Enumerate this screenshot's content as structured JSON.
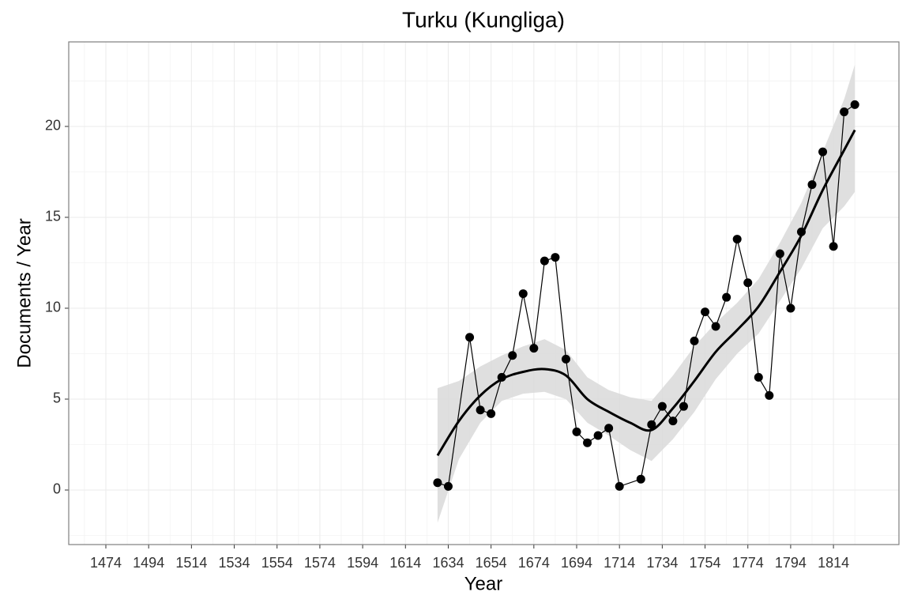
{
  "chart_data": {
    "type": "line",
    "title": "Turku (Kungliga)",
    "x_label": "Year",
    "y_label": "Documents / Year",
    "x": [
      1629,
      1634,
      1644,
      1649,
      1654,
      1659,
      1664,
      1669,
      1674,
      1679,
      1684,
      1689,
      1694,
      1699,
      1704,
      1709,
      1714,
      1724,
      1729,
      1734,
      1739,
      1744,
      1749,
      1754,
      1759,
      1764,
      1769,
      1774,
      1779,
      1784,
      1789,
      1794,
      1799,
      1804,
      1809,
      1814,
      1819,
      1824
    ],
    "values": [
      0.4,
      0.2,
      8.4,
      4.4,
      4.2,
      6.2,
      7.4,
      10.8,
      7.8,
      12.6,
      12.8,
      7.2,
      3.2,
      2.6,
      3.0,
      3.4,
      0.2,
      0.6,
      3.6,
      4.6,
      3.8,
      4.6,
      8.2,
      9.8,
      9.0,
      10.6,
      13.8,
      11.4,
      6.2,
      5.2,
      13.0,
      10.0,
      14.2,
      16.8,
      18.6,
      13.4,
      20.8,
      21.2
    ],
    "color": "#000000",
    "smooth": {
      "x": [
        1629,
        1639,
        1649,
        1659,
        1669,
        1679,
        1689,
        1699,
        1709,
        1719,
        1729,
        1739,
        1749,
        1759,
        1769,
        1779,
        1789,
        1799,
        1809,
        1819,
        1824
      ],
      "values": [
        1.9,
        3.8,
        5.2,
        6.1,
        6.5,
        6.65,
        6.3,
        5.0,
        4.3,
        3.7,
        3.3,
        4.5,
        6.0,
        7.6,
        8.8,
        10.1,
        12.0,
        14.0,
        16.5,
        18.7,
        19.8
      ],
      "lower": [
        -1.8,
        1.7,
        3.7,
        4.9,
        5.3,
        5.4,
        5.0,
        3.7,
        3.0,
        2.2,
        1.6,
        2.8,
        4.3,
        6.1,
        7.5,
        8.6,
        10.4,
        12.2,
        14.4,
        15.6,
        16.4
      ],
      "upper": [
        5.6,
        6.0,
        6.8,
        7.4,
        7.9,
        8.3,
        7.7,
        6.2,
        5.5,
        5.1,
        4.9,
        6.3,
        7.9,
        9.2,
        10.3,
        11.6,
        13.6,
        15.8,
        18.6,
        21.5,
        23.4
      ],
      "color": "#000000",
      "band_color": "#d9d9d9"
    },
    "xlim": [
      1456.65,
      1844.6
    ],
    "xticks": [
      1474,
      1494,
      1514,
      1534,
      1554,
      1574,
      1594,
      1614,
      1634,
      1654,
      1674,
      1694,
      1714,
      1734,
      1754,
      1774,
      1794,
      1814
    ],
    "ylim": [
      -3.0,
      24.65
    ],
    "yticks": [
      0,
      5,
      10,
      15,
      20
    ],
    "grid": true
  }
}
